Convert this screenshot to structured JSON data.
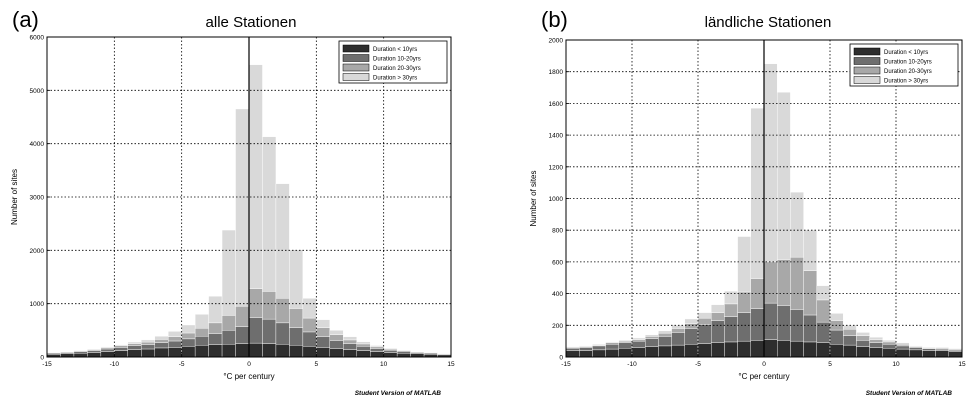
{
  "figure": {
    "watermark": "Student Version of MATLAB"
  },
  "chart_data": [
    {
      "panel_tag": "(a)",
      "type": "bar",
      "stacked": true,
      "title": "alle Stationen",
      "xlabel": "°C per century",
      "ylabel": "Number of sites",
      "xlim": [
        -15,
        15
      ],
      "ylim": [
        0,
        6000
      ],
      "bin_width": 1,
      "xticks": [
        -15,
        -10,
        -5,
        0,
        5,
        10,
        15
      ],
      "yticks": [
        0,
        1000,
        2000,
        3000,
        4000,
        5000,
        6000
      ],
      "grid": true,
      "vertical_line_at": 0,
      "legend_position": "top-right",
      "bin_centers": [
        -14.5,
        -13.5,
        -12.5,
        -11.5,
        -10.5,
        -9.5,
        -8.5,
        -7.5,
        -6.5,
        -5.5,
        -4.5,
        -3.5,
        -2.5,
        -1.5,
        -0.5,
        0.5,
        1.5,
        2.5,
        3.5,
        4.5,
        5.5,
        6.5,
        7.5,
        8.5,
        9.5,
        10.5,
        11.5,
        12.5,
        13.5,
        14.5
      ],
      "series": [
        {
          "name": "Duration < 10yrs",
          "color": "#2e2e2e",
          "values": [
            50,
            60,
            70,
            80,
            100,
            120,
            140,
            150,
            170,
            180,
            200,
            220,
            230,
            240,
            250,
            260,
            250,
            240,
            220,
            200,
            180,
            160,
            140,
            120,
            100,
            80,
            70,
            60,
            50,
            40
          ]
        },
        {
          "name": "Duration 10-20yrs",
          "color": "#6e6e6e",
          "values": [
            20,
            25,
            30,
            40,
            50,
            60,
            70,
            80,
            100,
            120,
            140,
            170,
            210,
            260,
            320,
            480,
            460,
            400,
            330,
            270,
            200,
            150,
            110,
            80,
            60,
            45,
            35,
            25,
            20,
            15
          ]
        },
        {
          "name": "Duration 20-30yrs",
          "color": "#a8a8a8",
          "values": [
            10,
            10,
            15,
            20,
            25,
            30,
            40,
            50,
            60,
            80,
            110,
            150,
            200,
            280,
            380,
            540,
            520,
            460,
            360,
            260,
            170,
            110,
            70,
            45,
            30,
            20,
            15,
            10,
            10,
            5
          ]
        },
        {
          "name": "Duration > 30yrs",
          "color": "#d9d9d9",
          "values": [
            5,
            5,
            10,
            10,
            15,
            20,
            30,
            40,
            60,
            100,
            150,
            260,
            500,
            1600,
            3700,
            4200,
            2900,
            2150,
            1100,
            370,
            150,
            80,
            60,
            40,
            25,
            15,
            10,
            5,
            5,
            5
          ]
        }
      ]
    },
    {
      "panel_tag": "(b)",
      "type": "bar",
      "stacked": true,
      "title": "ländliche Stationen",
      "xlabel": "°C per century",
      "ylabel": "Number of sites",
      "xlim": [
        -15,
        15
      ],
      "ylim": [
        0,
        2000
      ],
      "bin_width": 1,
      "xticks": [
        -15,
        -10,
        -5,
        0,
        5,
        10,
        15
      ],
      "yticks": [
        0,
        200,
        400,
        600,
        800,
        1000,
        1200,
        1400,
        1600,
        1800,
        2000
      ],
      "grid": true,
      "vertical_line_at": 0,
      "legend_position": "top-right",
      "bin_centers": [
        -14.5,
        -13.5,
        -12.5,
        -11.5,
        -10.5,
        -9.5,
        -8.5,
        -7.5,
        -6.5,
        -5.5,
        -4.5,
        -3.5,
        -2.5,
        -1.5,
        -0.5,
        0.5,
        1.5,
        2.5,
        3.5,
        4.5,
        5.5,
        6.5,
        7.5,
        8.5,
        9.5,
        10.5,
        11.5,
        12.5,
        13.5,
        14.5
      ],
      "series": [
        {
          "name": "Duration < 10yrs",
          "color": "#2e2e2e",
          "values": [
            40,
            40,
            45,
            50,
            55,
            60,
            65,
            70,
            75,
            80,
            85,
            90,
            95,
            100,
            105,
            110,
            105,
            100,
            95,
            90,
            80,
            75,
            65,
            60,
            55,
            50,
            45,
            40,
            40,
            35
          ]
        },
        {
          "name": "Duration 10-20yrs",
          "color": "#6e6e6e",
          "values": [
            15,
            20,
            25,
            30,
            35,
            40,
            50,
            60,
            80,
            100,
            120,
            140,
            160,
            180,
            200,
            230,
            220,
            200,
            170,
            130,
            90,
            60,
            40,
            30,
            25,
            20,
            15,
            12,
            10,
            8
          ]
        },
        {
          "name": "Duration 20-30yrs",
          "color": "#a8a8a8",
          "values": [
            5,
            5,
            5,
            10,
            10,
            10,
            15,
            20,
            25,
            30,
            40,
            50,
            80,
            130,
            190,
            260,
            290,
            330,
            280,
            140,
            60,
            40,
            30,
            20,
            15,
            10,
            5,
            5,
            5,
            5
          ]
        },
        {
          "name": "Duration > 30yrs",
          "color": "#d9d9d9",
          "values": [
            5,
            5,
            5,
            5,
            5,
            10,
            10,
            15,
            20,
            30,
            35,
            50,
            80,
            350,
            1075,
            1250,
            1055,
            410,
            255,
            90,
            45,
            25,
            20,
            15,
            10,
            10,
            5,
            5,
            5,
            5
          ]
        }
      ]
    }
  ]
}
